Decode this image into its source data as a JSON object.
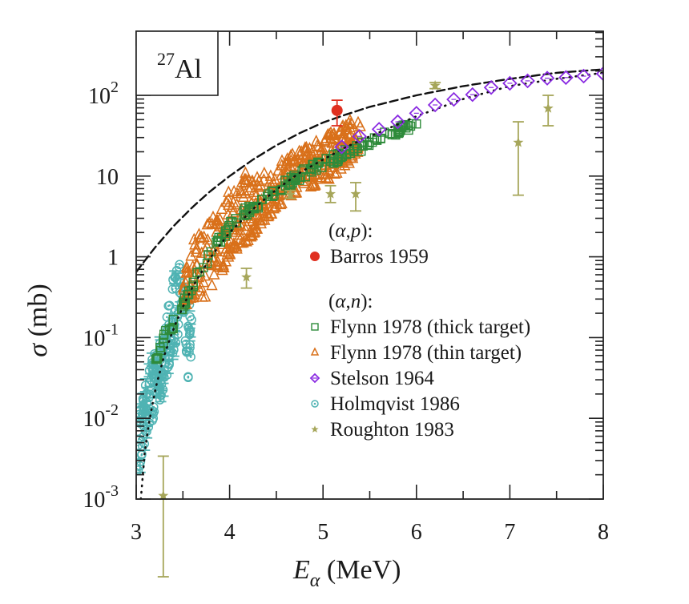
{
  "chart_data": {
    "type": "scatter",
    "title": "",
    "inset_label": {
      "superscript": "27",
      "text": "Al"
    },
    "xlabel": {
      "main": "E",
      "subscript": "α",
      "unit": " (MeV)"
    },
    "ylabel": {
      "symbol": "σ",
      "unit": " (mb)"
    },
    "xlim": [
      3,
      8
    ],
    "ylim": [
      0.001,
      250
    ],
    "yscale": "log",
    "x_ticks": [
      {
        "value": 3,
        "label": "3"
      },
      {
        "value": 4,
        "label": "4"
      },
      {
        "value": 5,
        "label": "5"
      },
      {
        "value": 6,
        "label": "6"
      },
      {
        "value": 7,
        "label": "7"
      },
      {
        "value": 8,
        "label": "8"
      }
    ],
    "y_ticks": [
      {
        "value": 0.001,
        "base": "10",
        "exp": "-3"
      },
      {
        "value": 0.01,
        "base": "10",
        "exp": "-2"
      },
      {
        "value": 0.1,
        "base": "10",
        "exp": "-1"
      },
      {
        "value": 1,
        "base": "1",
        "exp": ""
      },
      {
        "value": 10,
        "base": "10",
        "exp": ""
      },
      {
        "value": 100,
        "base": "10",
        "exp": "2"
      }
    ],
    "grid": false,
    "legend_position": "center-right",
    "legend_groups": [
      {
        "heading": "(α,p):",
        "entries": [
          "barros"
        ]
      },
      {
        "heading": "(α,n):",
        "entries": [
          "flynn_thick",
          "flynn_thin",
          "stelson",
          "holmqvist",
          "roughton"
        ]
      }
    ],
    "curves": [
      {
        "name": "dashed-curve",
        "style": "dashed",
        "color": "#111111",
        "x": [
          3.0,
          3.2,
          3.4,
          3.6,
          3.8,
          4.0,
          4.25,
          4.5,
          4.75,
          5.0,
          5.25,
          5.5,
          6.0,
          6.5,
          7.0,
          7.5,
          8.0
        ],
        "y": [
          0.65,
          1.3,
          2.4,
          4.1,
          6.6,
          10.0,
          16,
          24,
          34,
          46,
          58,
          72,
          100,
          130,
          160,
          190,
          210
        ]
      },
      {
        "name": "dotted-curve",
        "style": "dotted",
        "color": "#111111",
        "x": [
          3.05,
          3.1,
          3.2,
          3.3,
          3.4,
          3.5,
          3.6,
          3.8,
          4.0,
          4.25,
          4.5,
          4.75,
          5.0,
          5.25,
          5.5,
          6.0,
          6.5,
          7.0,
          7.5,
          8.0
        ],
        "y": [
          0.001,
          0.005,
          0.022,
          0.06,
          0.13,
          0.24,
          0.42,
          1.0,
          2.0,
          3.9,
          6.8,
          11,
          16,
          23,
          31,
          55,
          90,
          130,
          160,
          190
        ]
      }
    ],
    "series": [
      {
        "key": "barros",
        "name": "Barros 1959",
        "marker": "filled-circle",
        "color": "#e03020",
        "points": [
          {
            "x": 5.15,
            "y": 65,
            "yerr_low": 42,
            "yerr_high": 87
          }
        ]
      },
      {
        "key": "flynn_thick",
        "name": "Flynn 1978 (thick target)",
        "marker": "square",
        "color": "#2e8b3a",
        "band": {
          "x": [
            3.2,
            3.3,
            3.4,
            3.5,
            3.6,
            3.7,
            3.8,
            3.9,
            4.0,
            4.2,
            4.4,
            4.6,
            4.8,
            5.0,
            5.2,
            5.4,
            5.6,
            5.8,
            6.0
          ],
          "y": [
            0.05,
            0.1,
            0.15,
            0.25,
            0.45,
            0.7,
            1.1,
            1.7,
            2.4,
            3.8,
            5.5,
            8.0,
            11,
            14,
            18,
            23,
            29,
            36,
            45
          ]
        }
      },
      {
        "key": "flynn_thin",
        "name": "Flynn 1978 (thin target)",
        "marker": "triangle",
        "color": "#d9701a",
        "band": {
          "x": [
            3.5,
            3.6,
            3.7,
            3.8,
            3.9,
            4.0,
            4.2,
            4.4,
            4.6,
            4.8,
            5.0,
            5.2,
            5.4
          ],
          "y_low": [
            0.2,
            0.3,
            0.25,
            0.4,
            0.6,
            1.0,
            1.6,
            3.0,
            5.0,
            7.0,
            8.0,
            12,
            18
          ],
          "y_high": [
            0.5,
            1.5,
            2.5,
            3.0,
            4.0,
            7.0,
            12,
            12,
            18,
            22,
            30,
            45,
            55
          ]
        }
      },
      {
        "key": "stelson",
        "name": "Stelson 1964",
        "marker": "diamond",
        "color": "#8a2be2",
        "points": [
          {
            "x": 5.2,
            "y": 23
          },
          {
            "x": 5.39,
            "y": 31
          },
          {
            "x": 5.6,
            "y": 38
          },
          {
            "x": 5.8,
            "y": 47
          },
          {
            "x": 6.0,
            "y": 60
          },
          {
            "x": 6.2,
            "y": 76
          },
          {
            "x": 6.4,
            "y": 89
          },
          {
            "x": 6.6,
            "y": 102
          },
          {
            "x": 6.8,
            "y": 125
          },
          {
            "x": 7.0,
            "y": 141
          },
          {
            "x": 7.19,
            "y": 151
          },
          {
            "x": 7.4,
            "y": 163
          },
          {
            "x": 7.6,
            "y": 166
          },
          {
            "x": 7.79,
            "y": 173
          },
          {
            "x": 8.0,
            "y": 185
          }
        ]
      },
      {
        "key": "holmqvist",
        "name": "Holmqvist 1986",
        "marker": "circle-dot",
        "color": "#4fb3b3",
        "band": {
          "x": [
            3.02,
            3.05,
            3.1,
            3.15,
            3.2,
            3.25,
            3.3,
            3.35,
            3.4,
            3.45,
            3.5,
            3.55,
            3.6
          ],
          "y_low": [
            0.0017,
            0.003,
            0.005,
            0.008,
            0.01,
            0.015,
            0.02,
            0.04,
            0.06,
            0.1,
            0.15,
            0.03,
            0.03
          ],
          "y_high": [
            0.012,
            0.015,
            0.03,
            0.05,
            0.07,
            0.1,
            0.15,
            0.3,
            0.6,
            0.85,
            0.8,
            0.4,
            0.2
          ]
        }
      },
      {
        "key": "roughton",
        "name": "Roughton 1983",
        "marker": "star",
        "color": "#a6a65a",
        "points": [
          {
            "x": 3.29,
            "y": 0.0011,
            "yerr_low": 0.0001,
            "yerr_high": 0.0034
          },
          {
            "x": 4.18,
            "y": 0.56,
            "yerr_low": 0.41,
            "yerr_high": 0.72
          },
          {
            "x": 4.65,
            "y": 5.9,
            "yerr_low": 5.3,
            "yerr_high": 6.6
          },
          {
            "x": 5.08,
            "y": 6.0,
            "yerr_low": 4.7,
            "yerr_high": 7.6
          },
          {
            "x": 5.35,
            "y": 6.0,
            "yerr_low": 3.7,
            "yerr_high": 8.3
          },
          {
            "x": 6.2,
            "y": 132,
            "yerr_low": 121,
            "yerr_high": 144
          },
          {
            "x": 7.09,
            "y": 26,
            "yerr_low": 5.8,
            "yerr_high": 47
          },
          {
            "x": 7.41,
            "y": 69,
            "yerr_low": 42,
            "yerr_high": 100
          }
        ]
      }
    ]
  }
}
